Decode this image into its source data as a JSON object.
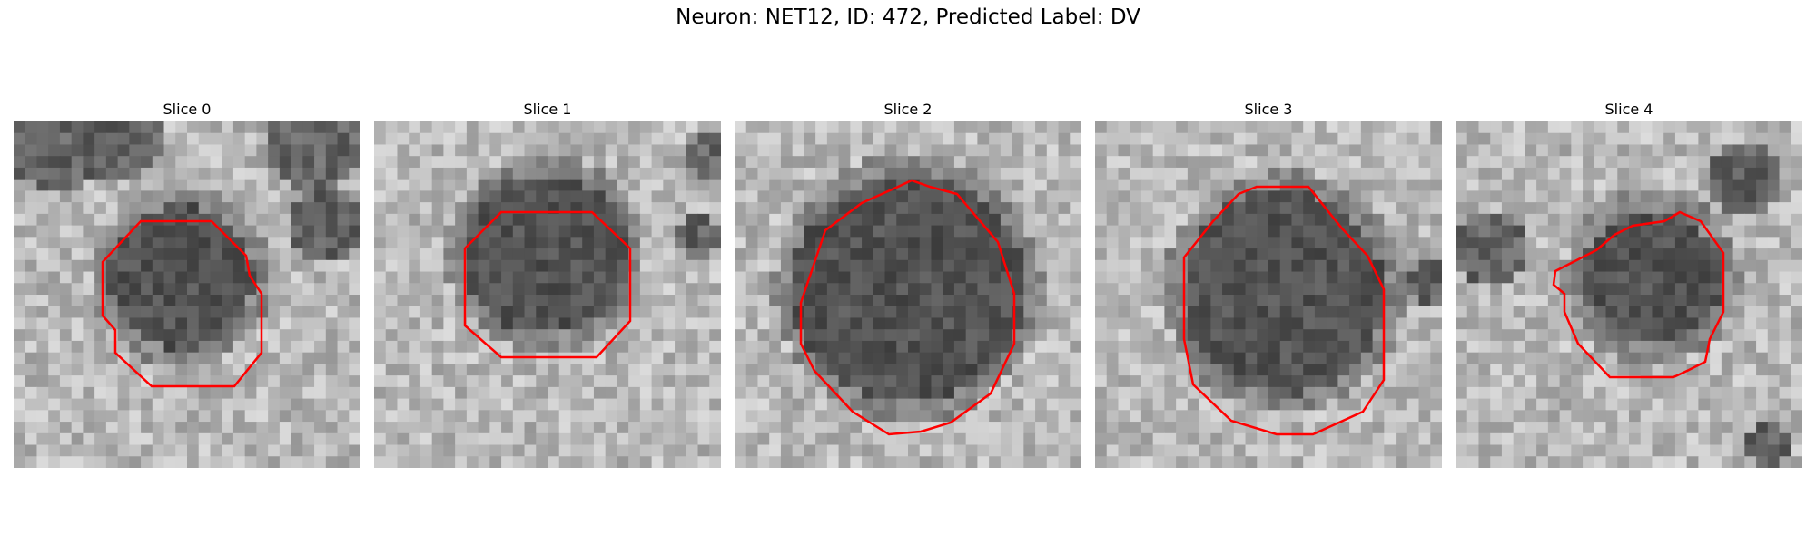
{
  "figure": {
    "title": "Neuron: NET12, ID: 472, Predicted Label: DV",
    "contour_color": "#ff0000"
  },
  "panels": [
    {
      "title": "Slice 0",
      "contour_icon": "red-octagon-contour"
    },
    {
      "title": "Slice 1",
      "contour_icon": "red-octagon-contour"
    },
    {
      "title": "Slice 2",
      "contour_icon": "red-octagon-contour"
    },
    {
      "title": "Slice 3",
      "contour_icon": "red-octagon-contour"
    },
    {
      "title": "Slice 4",
      "contour_icon": "red-octagon-contour"
    }
  ]
}
